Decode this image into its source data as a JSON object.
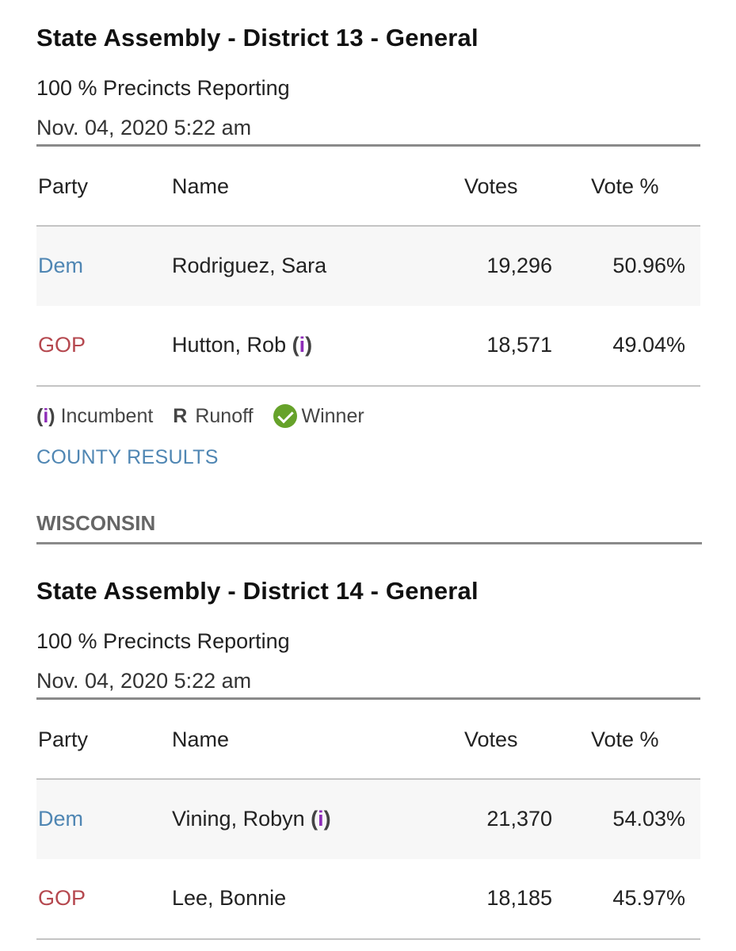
{
  "races": [
    {
      "title": "State Assembly - District 13 - General",
      "precincts": "100 % Precincts Reporting",
      "timestamp": "Nov. 04, 2020 5:22 am",
      "headers": {
        "party": "Party",
        "name": "Name",
        "votes": "Votes",
        "pct": "Vote %"
      },
      "candidates": [
        {
          "party": "Dem",
          "name": "Rodriguez, Sara",
          "incumbent": "",
          "votes": "19,296",
          "pct": "50.96%"
        },
        {
          "party": "GOP",
          "name": "Hutton, Rob ",
          "incumbent_open": "(",
          "incumbent_i": "i",
          "incumbent_close": ")",
          "votes": "18,571",
          "pct": "49.04%"
        }
      ]
    },
    {
      "title": "State Assembly - District 14 - General",
      "precincts": "100 % Precincts Reporting",
      "timestamp": "Nov. 04, 2020 5:22 am",
      "headers": {
        "party": "Party",
        "name": "Name",
        "votes": "Votes",
        "pct": "Vote %"
      },
      "candidates": [
        {
          "party": "Dem",
          "name": "Vining, Robyn ",
          "incumbent_open": "(",
          "incumbent_i": "i",
          "incumbent_close": ")",
          "votes": "21,370",
          "pct": "54.03%"
        },
        {
          "party": "GOP",
          "name": "Lee, Bonnie",
          "votes": "18,185",
          "pct": "45.97%"
        }
      ]
    }
  ],
  "legend": {
    "inc_open": "(",
    "inc_i": "i",
    "inc_close": ")",
    "incumbent_label": "Incumbent",
    "runoff_symbol": "R",
    "runoff_label": "Runoff",
    "winner_label": "Winner",
    "winner_icon": "check-circle-icon",
    "winner_color": "#66a22a"
  },
  "county_results_link": "COUNTY RESULTS",
  "state_label": "WISCONSIN",
  "colors": {
    "dem": "#4f86b3",
    "gop": "#b5484f",
    "incumbent_i": "#8e2db8"
  }
}
